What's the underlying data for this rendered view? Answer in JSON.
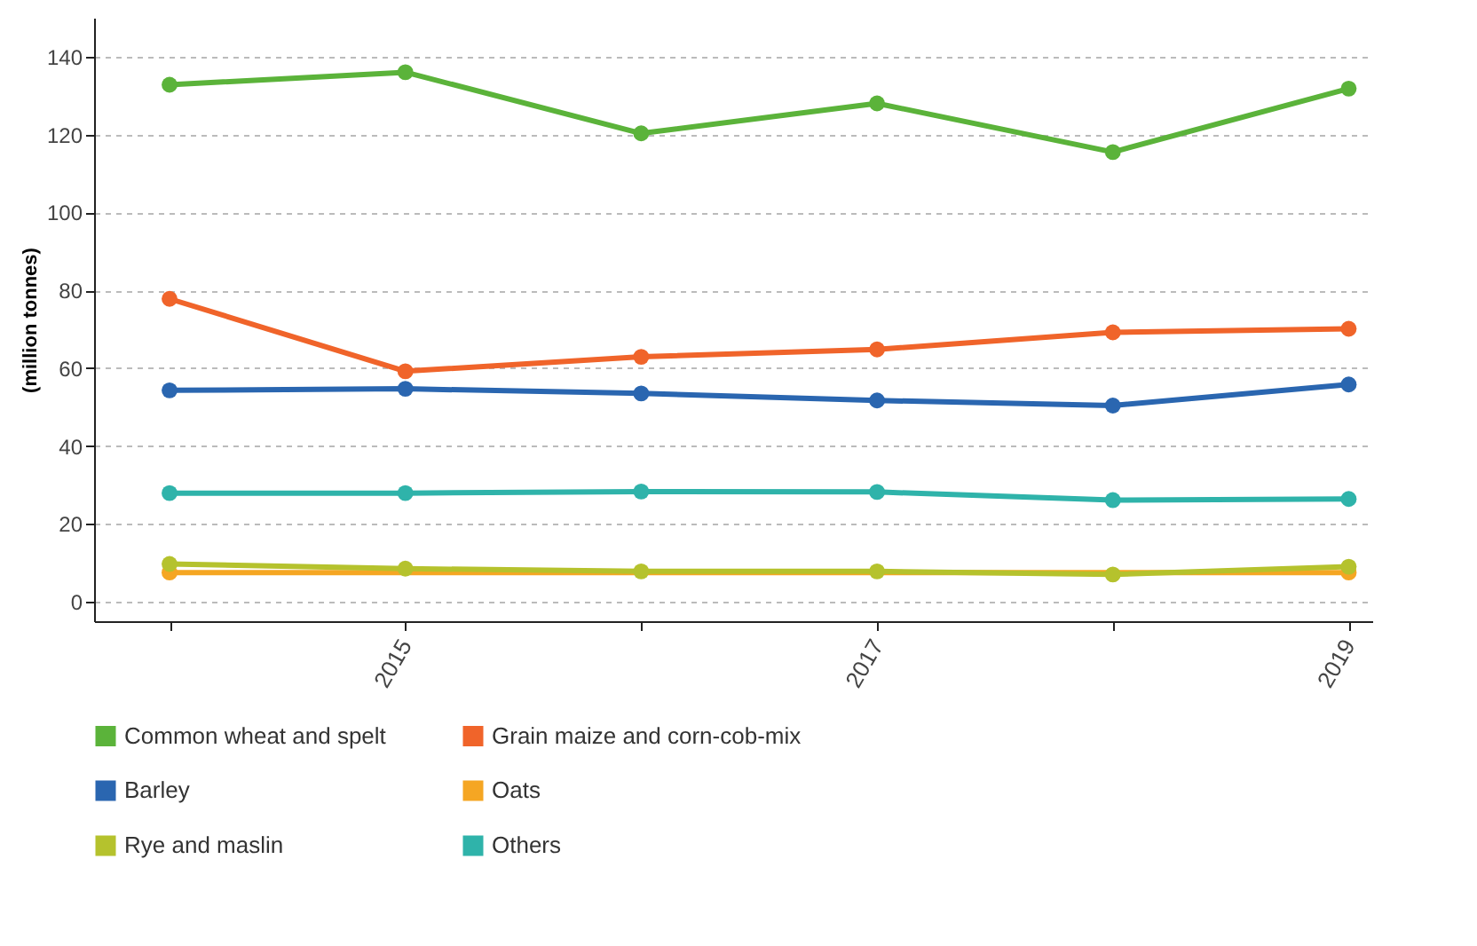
{
  "chart_data": {
    "type": "line",
    "ylabel": "(million tonnes)",
    "x": [
      2014,
      2015,
      2016,
      2017,
      2018,
      2019
    ],
    "series": [
      {
        "name": "Common wheat and spelt",
        "color": "#5bb33a",
        "values": [
          132.8,
          136,
          120.3,
          128,
          115.5,
          131.8
        ]
      },
      {
        "name": "Grain maize and corn-cob-mix",
        "color": "#f0642a",
        "values": [
          77.8,
          59.2,
          62.9,
          64.8,
          69.2,
          70.1
        ]
      },
      {
        "name": "Barley",
        "color": "#2a66b0",
        "values": [
          54.3,
          54.7,
          53.5,
          51.7,
          50.4,
          55.8
        ]
      },
      {
        "name": "Oats",
        "color": "#f5a623",
        "values": [
          7.5,
          null,
          null,
          null,
          null,
          7.5
        ]
      },
      {
        "name": "Rye and maslin",
        "color": "#b5c22d",
        "values": [
          9.7,
          8.5,
          7.8,
          7.8,
          7,
          9
        ]
      },
      {
        "name": "Others",
        "color": "#2fb3aa",
        "values": [
          27.9,
          27.9,
          28.3,
          28.2,
          26.1,
          26.4
        ]
      }
    ],
    "xlim": [
      2013.68,
      2019.1
    ],
    "xticks": [
      {
        "value": 2014,
        "label": null
      },
      2015,
      {
        "value": 2016,
        "label": null
      },
      2017,
      {
        "value": 2018,
        "label": null
      },
      2019
    ],
    "ylim": [
      -5,
      150
    ],
    "yticks": [
      0,
      20,
      40,
      60,
      80,
      100,
      120,
      140
    ],
    "grid": "y",
    "legend": "bottom",
    "marker": "circle",
    "line_style": "solid"
  }
}
